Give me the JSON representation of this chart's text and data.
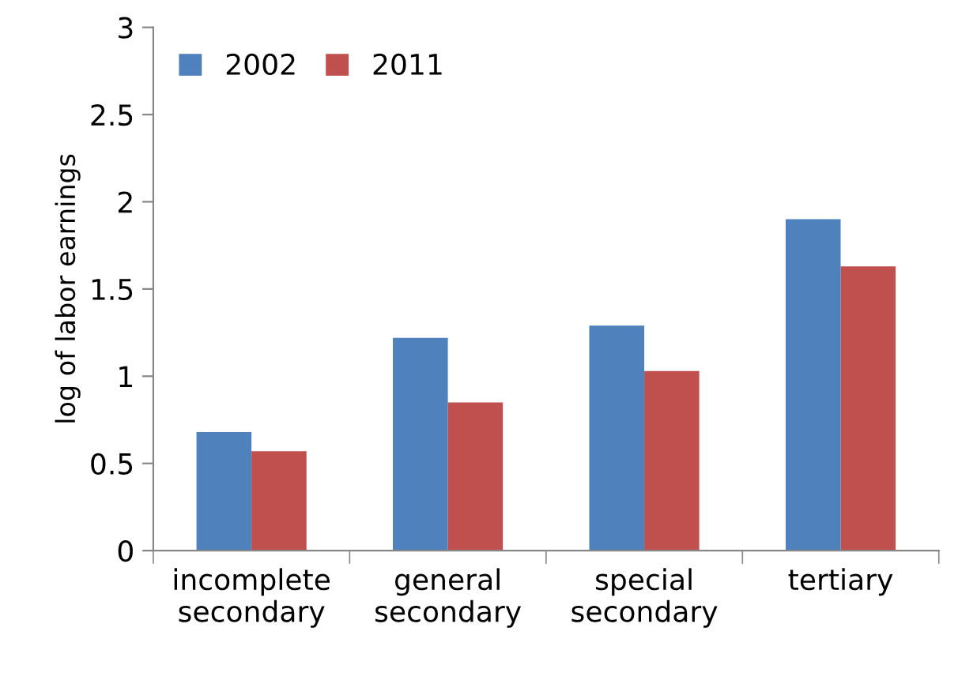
{
  "chart_data": {
    "type": "bar",
    "ylabel": "log of labor earnings",
    "categories": [
      "incomplete\nsecondary",
      "general\nsecondary",
      "special\nsecondary",
      "tertiary"
    ],
    "series": [
      {
        "name": "2002",
        "color": "#4f81bd",
        "values": [
          0.68,
          1.22,
          1.29,
          1.9
        ]
      },
      {
        "name": "2011",
        "color": "#c0504d",
        "values": [
          0.57,
          0.85,
          1.03,
          1.63
        ]
      }
    ],
    "ylim": [
      0,
      3
    ],
    "yticks": [
      0,
      0.5,
      1,
      1.5,
      2,
      2.5,
      3
    ],
    "grid": false,
    "legend": "top left"
  }
}
